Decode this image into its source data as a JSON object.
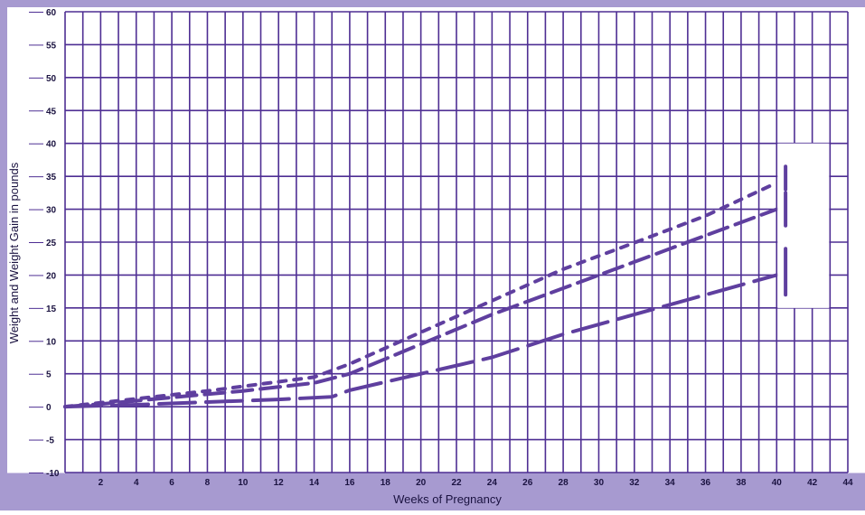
{
  "colors": {
    "background_band": "#a79ad0",
    "grid": "#4e2e93",
    "series_line": "#5f3f9f",
    "axis_text": "#1a1240",
    "label_text": "#1a1240",
    "plot_background": "#ffffff"
  },
  "chart_data": {
    "type": "line",
    "title": "",
    "xlabel": "Weeks of Pregnancy",
    "ylabel": "Weight and Weight Gain in pounds",
    "xlim": [
      0,
      44
    ],
    "ylim": [
      -10,
      60
    ],
    "x_ticks": [
      "2",
      "4",
      "6",
      "8",
      "10",
      "12",
      "14",
      "16",
      "18",
      "20",
      "22",
      "24",
      "26",
      "28",
      "30",
      "32",
      "34",
      "36",
      "38",
      "40",
      "42",
      "44"
    ],
    "y_ticks": [
      "60",
      "55",
      "50",
      "45",
      "40",
      "35",
      "30",
      "25",
      "20",
      "15",
      "10",
      "5",
      "0",
      "-5",
      "-10"
    ],
    "grid": true,
    "legend": "none",
    "series": [
      {
        "style": "short-dash",
        "points": [
          [
            0,
            0
          ],
          [
            2,
            0.6
          ],
          [
            4,
            1.2
          ],
          [
            6,
            1.8
          ],
          [
            8,
            2.4
          ],
          [
            10,
            3.1
          ],
          [
            12,
            3.8
          ],
          [
            14,
            4.5
          ],
          [
            16,
            6.5
          ],
          [
            20,
            11.3
          ],
          [
            24,
            16.1
          ],
          [
            28,
            20.9
          ],
          [
            32,
            24.9
          ],
          [
            36,
            29.0
          ],
          [
            40,
            34.0
          ]
        ]
      },
      {
        "style": "medium-dash",
        "points": [
          [
            0,
            0
          ],
          [
            2,
            0.4
          ],
          [
            4,
            0.9
          ],
          [
            6,
            1.4
          ],
          [
            8,
            1.9
          ],
          [
            10,
            2.4
          ],
          [
            12,
            3.0
          ],
          [
            14,
            3.6
          ],
          [
            16,
            5.0
          ],
          [
            20,
            9.5
          ],
          [
            24,
            14.0
          ],
          [
            28,
            18.0
          ],
          [
            32,
            22.0
          ],
          [
            36,
            26.0
          ],
          [
            40,
            30.0
          ]
        ]
      },
      {
        "style": "long-dash",
        "points": [
          [
            0,
            0
          ],
          [
            4,
            0.3
          ],
          [
            8,
            0.7
          ],
          [
            12,
            1.1
          ],
          [
            15,
            1.5
          ],
          [
            16,
            2.5
          ],
          [
            20,
            5.0
          ],
          [
            24,
            7.5
          ],
          [
            28,
            11.0
          ],
          [
            32,
            14.0
          ],
          [
            36,
            17.0
          ],
          [
            40,
            20.0
          ]
        ]
      }
    ],
    "range_marker": {
      "x": 40.5,
      "y_from": 15,
      "y_to": 40,
      "segments": [
        [
          36.5,
          33
        ],
        [
          32.5,
          27.5
        ],
        [
          24,
          17
        ]
      ]
    }
  }
}
